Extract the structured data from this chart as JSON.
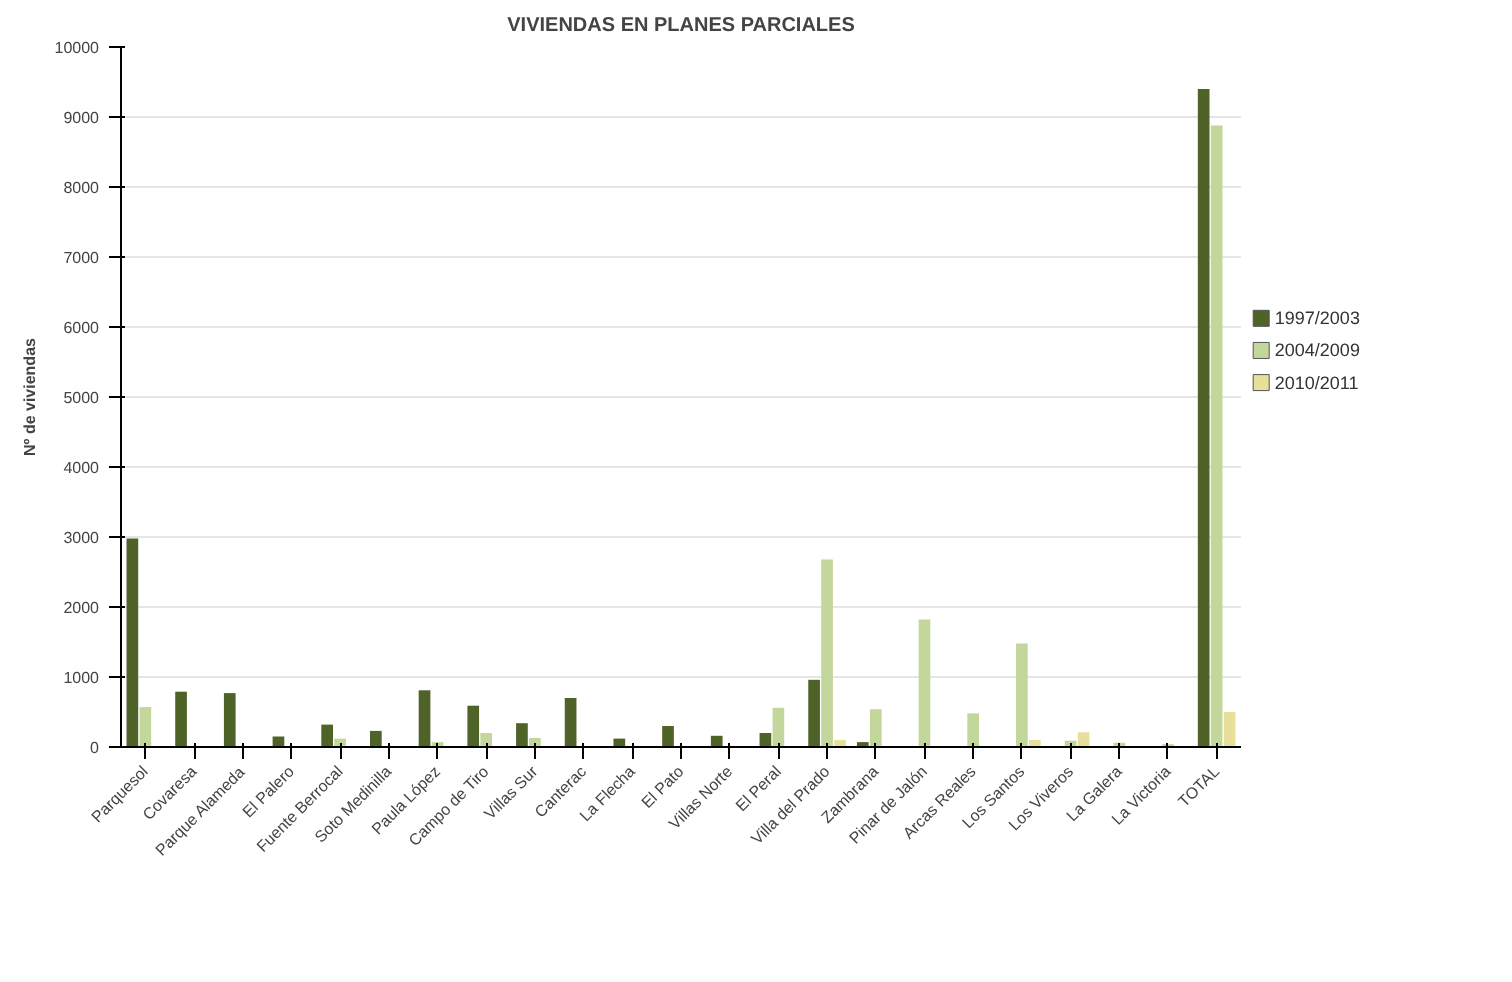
{
  "chart_data": {
    "type": "bar",
    "title": "VIVIENDAS EN PLANES PARCIALES",
    "ylabel": "Nº de viviendas",
    "categories": [
      "Parquesol",
      "Covaresa",
      "Parque Alameda",
      "El Palero",
      "Fuente Berrocal",
      "Soto Medinilla",
      "Paula López",
      "Campo de Tiro",
      "Villas Sur",
      "Canterac",
      "La Flecha",
      "El Pato",
      "Villas Norte",
      "El Peral",
      "Villa del Prado",
      "Zambrana",
      "Pinar de Jalón",
      "Arcas Reales",
      "Los Santos",
      "Los Viveros",
      "La Galera",
      "La Victoria",
      "TOTAL"
    ],
    "series": [
      {
        "name": "1997/2003",
        "color": "#4f6228",
        "values": [
          2980,
          790,
          770,
          150,
          320,
          230,
          810,
          590,
          340,
          700,
          120,
          300,
          160,
          200,
          960,
          70,
          0,
          0,
          0,
          0,
          0,
          0,
          9400
        ]
      },
      {
        "name": "2004/2009",
        "color": "#c3d69b",
        "values": [
          570,
          0,
          0,
          0,
          120,
          0,
          70,
          200,
          130,
          0,
          0,
          null,
          0,
          560,
          2680,
          540,
          1820,
          480,
          1480,
          90,
          60,
          40,
          8880
        ]
      },
      {
        "name": "2010/2011",
        "color": "#e6e09b",
        "values": [
          0,
          null,
          0,
          null,
          0,
          0,
          0,
          0,
          0,
          null,
          0,
          0,
          0,
          0,
          100,
          0,
          0,
          0,
          100,
          210,
          null,
          0,
          500
        ]
      }
    ],
    "ylim": [
      0,
      10000
    ],
    "yticks": [
      0,
      1000,
      2000,
      3000,
      4000,
      5000,
      6000,
      7000,
      8000,
      9000,
      10000
    ],
    "grid": "y",
    "legend": "right"
  }
}
